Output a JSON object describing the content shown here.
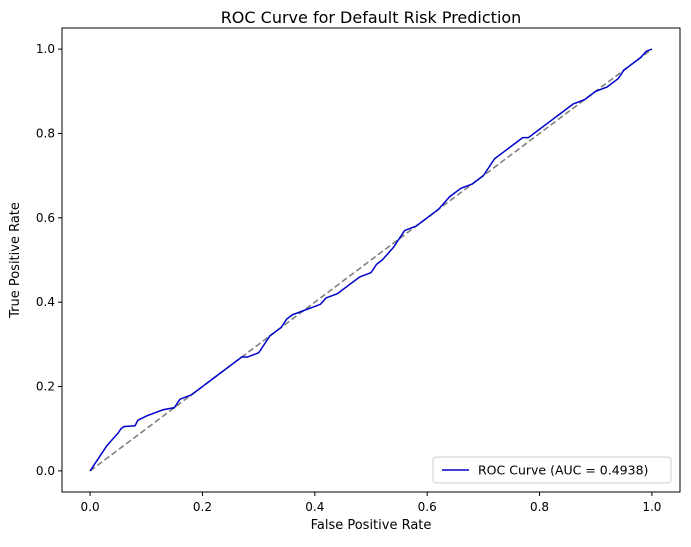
{
  "chart_data": {
    "type": "line",
    "title": "ROC Curve for Default Risk Prediction",
    "xlabel": "False Positive Rate",
    "ylabel": "True Positive Rate",
    "xlim": [
      -0.05,
      1.05
    ],
    "ylim": [
      -0.05,
      1.05
    ],
    "xticks": [
      0.0,
      0.2,
      0.4,
      0.6,
      0.8,
      1.0
    ],
    "yticks": [
      0.0,
      0.2,
      0.4,
      0.6,
      0.8,
      1.0
    ],
    "xtick_labels": [
      "0.0",
      "0.2",
      "0.4",
      "0.6",
      "0.8",
      "1.0"
    ],
    "ytick_labels": [
      "0.0",
      "0.2",
      "0.4",
      "0.6",
      "0.8",
      "1.0"
    ],
    "grid": false,
    "legend": {
      "placement": "lower-right"
    },
    "series": [
      {
        "name": "ROC Curve (AUC = 0.4938)",
        "color": "#0000cc",
        "style": "solid",
        "x": [
          0.0,
          0.005,
          0.01,
          0.02,
          0.03,
          0.04,
          0.05,
          0.055,
          0.06,
          0.08,
          0.085,
          0.1,
          0.12,
          0.13,
          0.15,
          0.16,
          0.18,
          0.2,
          0.22,
          0.23,
          0.25,
          0.27,
          0.28,
          0.3,
          0.31,
          0.32,
          0.33,
          0.34,
          0.35,
          0.36,
          0.38,
          0.4,
          0.41,
          0.42,
          0.44,
          0.46,
          0.48,
          0.5,
          0.51,
          0.52,
          0.54,
          0.56,
          0.58,
          0.6,
          0.62,
          0.64,
          0.66,
          0.68,
          0.7,
          0.72,
          0.74,
          0.76,
          0.77,
          0.78,
          0.8,
          0.82,
          0.84,
          0.86,
          0.88,
          0.9,
          0.92,
          0.94,
          0.95,
          0.96,
          0.97,
          0.98,
          0.99,
          1.0
        ],
        "y": [
          0.0,
          0.01,
          0.02,
          0.04,
          0.06,
          0.075,
          0.09,
          0.1,
          0.105,
          0.107,
          0.12,
          0.13,
          0.14,
          0.145,
          0.15,
          0.17,
          0.18,
          0.2,
          0.22,
          0.23,
          0.25,
          0.27,
          0.27,
          0.28,
          0.3,
          0.32,
          0.33,
          0.34,
          0.36,
          0.37,
          0.38,
          0.39,
          0.395,
          0.41,
          0.42,
          0.44,
          0.46,
          0.47,
          0.49,
          0.5,
          0.53,
          0.57,
          0.58,
          0.6,
          0.62,
          0.65,
          0.67,
          0.68,
          0.7,
          0.74,
          0.76,
          0.78,
          0.79,
          0.79,
          0.81,
          0.83,
          0.85,
          0.87,
          0.88,
          0.9,
          0.91,
          0.93,
          0.95,
          0.96,
          0.97,
          0.98,
          0.995,
          1.0
        ]
      },
      {
        "name": "",
        "color": "#808080",
        "style": "dashed",
        "x": [
          0.0,
          1.0
        ],
        "y": [
          0.0,
          1.0
        ]
      }
    ]
  }
}
